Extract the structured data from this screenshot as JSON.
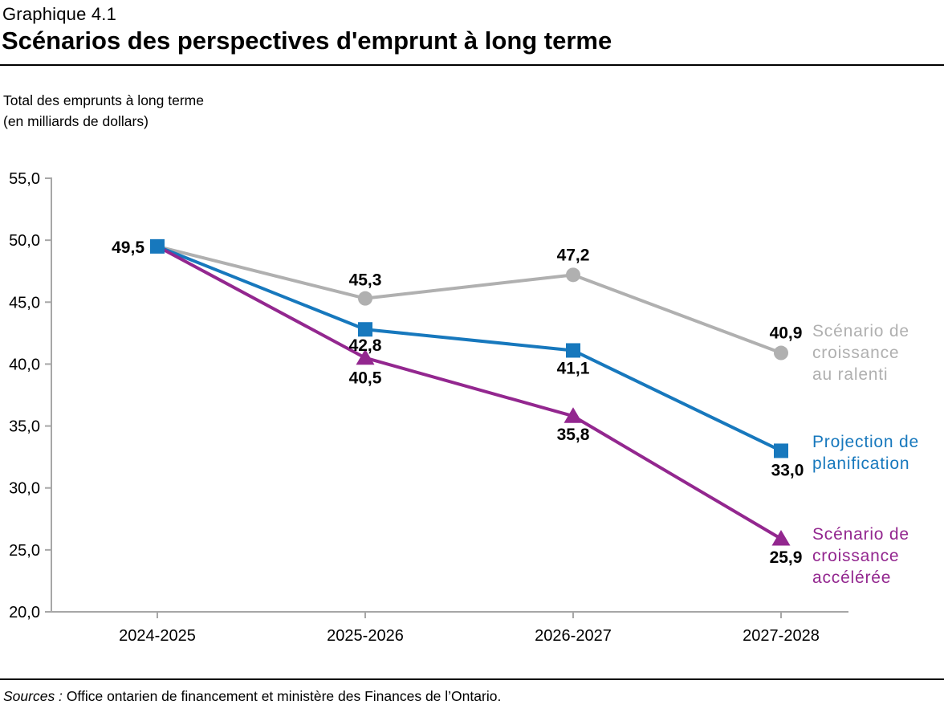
{
  "header": {
    "eyebrow": "Graphique 4.1",
    "title": "Scénarios des perspectives d'emprunt à long terme"
  },
  "subtitle": {
    "line1": "Total des emprunts à long terme",
    "line2": "(en milliards de dollars)"
  },
  "chart_data": {
    "type": "line",
    "title": "Scénarios des perspectives d'emprunt à long terme",
    "ylabel": "Total des emprunts à long terme (en milliards de dollars)",
    "xlabel": "",
    "categories": [
      "2024-2025",
      "2025-2026",
      "2026-2027",
      "2027-2028"
    ],
    "ylim": [
      20,
      55
    ],
    "ytick_step": 5,
    "ytick_labels": [
      "20,0",
      "25,0",
      "30,0",
      "35,0",
      "40,0",
      "45,0",
      "50,0",
      "55,0"
    ],
    "grid": false,
    "legend_position": "right",
    "decimal_style": "comma",
    "series": [
      {
        "key": "scenario-croissance-ralenti",
        "name": "Scénario de croissance au ralenti",
        "legend_lines": [
          "Scénario de",
          "croissance",
          "au ralenti"
        ],
        "color": "#B0B0B0",
        "marker": "circle",
        "values": [
          49.5,
          45.3,
          47.2,
          40.9
        ],
        "labels": [
          null,
          "45,3",
          "47,2",
          "40,9"
        ]
      },
      {
        "key": "projection-planification",
        "name": "Projection de planification",
        "legend_lines": [
          "Projection de",
          "planification"
        ],
        "color": "#1778BD",
        "marker": "square",
        "values": [
          49.5,
          42.8,
          41.1,
          33.0
        ],
        "labels": [
          "49,5",
          "42,8",
          "41,1",
          "33,0"
        ]
      },
      {
        "key": "scenario-croissance-acceleree",
        "name": "Scénario de croissance accélérée",
        "legend_lines": [
          "Scénario de",
          "croissance",
          "accélérée"
        ],
        "color": "#93278F",
        "marker": "triangle",
        "values": [
          49.5,
          40.5,
          35.8,
          25.9
        ],
        "labels": [
          null,
          "40,5",
          "35,8",
          "25,9"
        ]
      }
    ]
  },
  "footer": {
    "source_prefix": "Sources :",
    "source_text": "Office ontarien de financement et ministère des Finances de l’Ontario."
  }
}
